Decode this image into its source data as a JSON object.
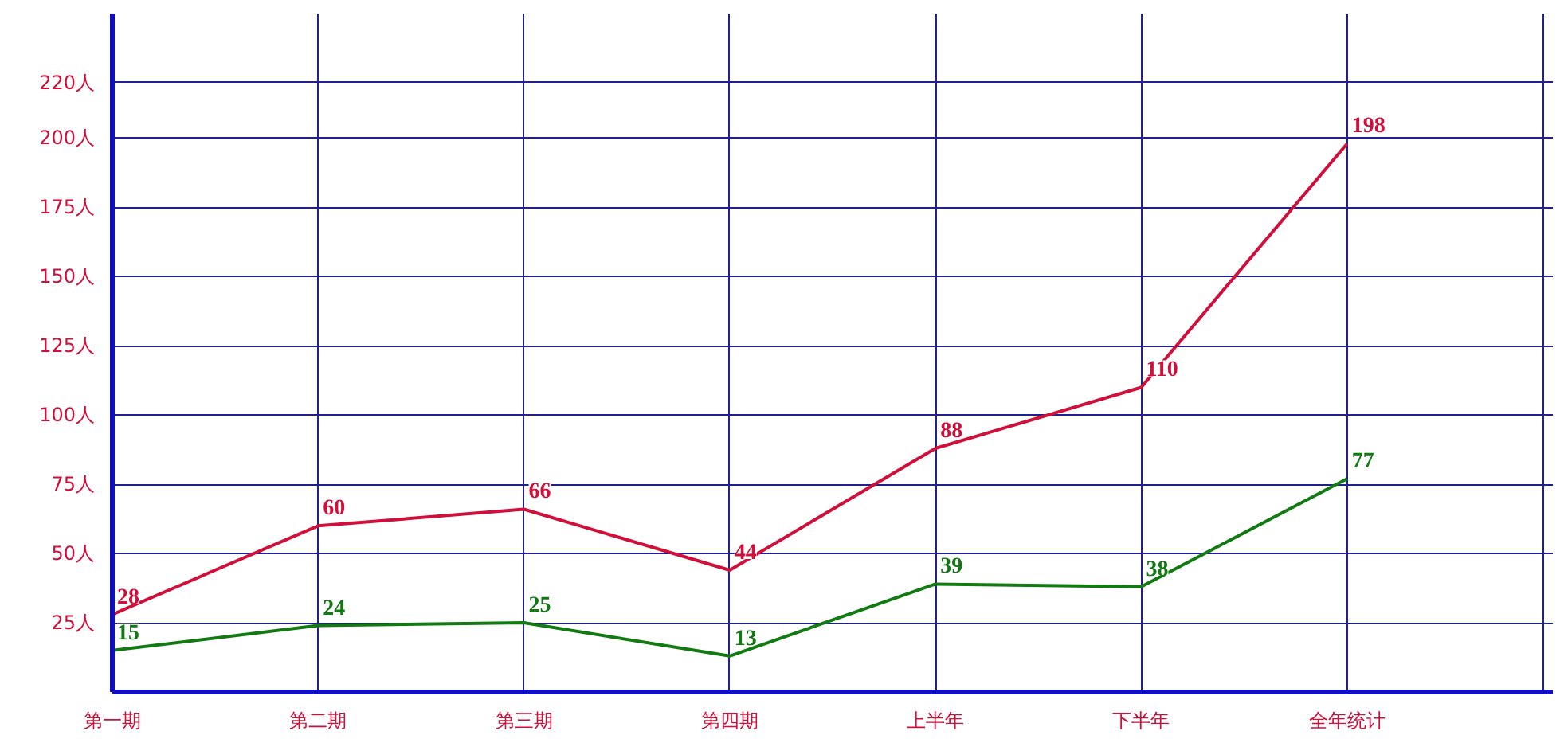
{
  "chart_data": {
    "type": "line",
    "categories": [
      "第一期",
      "第二期",
      "第三期",
      "第四期",
      "上半年",
      "下半年",
      "全年统计"
    ],
    "series": [
      {
        "color": "#d0103a",
        "values": [
          28,
          60,
          66,
          44,
          88,
          110,
          198
        ]
      },
      {
        "color": "#117a11",
        "values": [
          15,
          24,
          25,
          13,
          39,
          38,
          77
        ]
      }
    ],
    "ylim": [
      0,
      245
    ],
    "yticks": [
      {
        "value": 25,
        "label": "25人"
      },
      {
        "value": 50,
        "label": "50人"
      },
      {
        "value": 75,
        "label": "75人"
      },
      {
        "value": 100,
        "label": "100人"
      },
      {
        "value": 125,
        "label": "125人"
      },
      {
        "value": 150,
        "label": "150人"
      },
      {
        "value": 175,
        "label": "175人"
      },
      {
        "value": 200,
        "label": "200人"
      },
      {
        "value": 220,
        "label": "220人"
      }
    ],
    "grid": true,
    "data_labels": true
  }
}
